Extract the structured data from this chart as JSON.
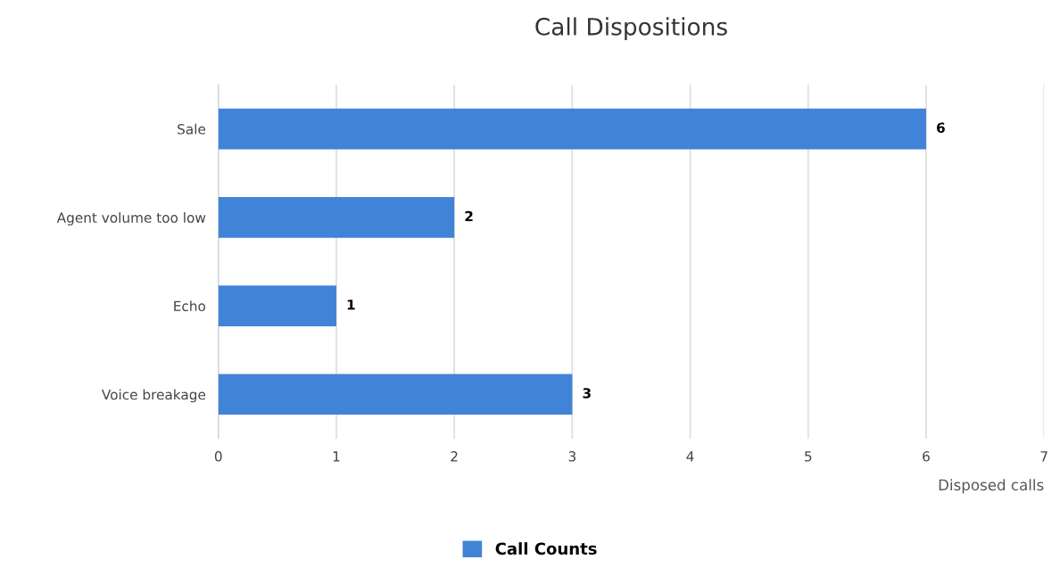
{
  "chart_data": {
    "type": "bar",
    "orientation": "horizontal",
    "title": "Call Dispositions",
    "xlabel": "Disposed calls",
    "categories": [
      "Sale",
      "Agent volume too low",
      "Echo",
      "Voice breakage"
    ],
    "series": [
      {
        "name": "Call Counts",
        "color": "#4183d7",
        "values": [
          6,
          2,
          1,
          3
        ]
      }
    ],
    "xlim": [
      0,
      7
    ],
    "xticks": [
      0,
      1,
      2,
      3,
      4,
      5,
      6,
      7
    ],
    "grid": "x",
    "legend": "bottom",
    "data_labels": true
  }
}
